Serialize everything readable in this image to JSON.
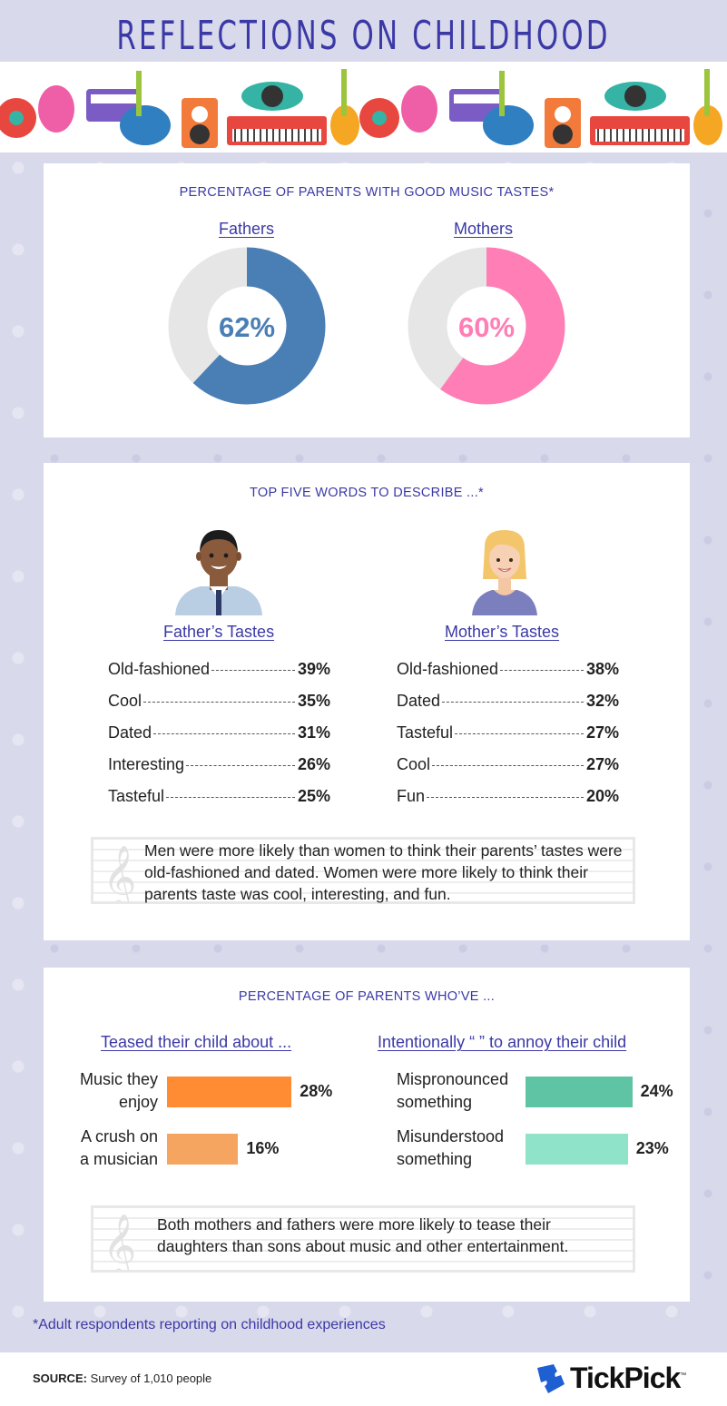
{
  "title": "REFLECTIONS ON CHILDHOOD",
  "colors": {
    "title": "#3b39a6",
    "fathers": "#4a7fb5",
    "mothers": "#ff7eb6",
    "donut_bg": "#e6e6e6",
    "orange": "#ff8c33",
    "light_orange": "#f5a560",
    "teal": "#5fc4a3",
    "light_teal": "#8fe3c9"
  },
  "section1": {
    "title": "PERCENTAGE OF PARENTS WITH GOOD MUSIC TASTES*",
    "fathers_label": "Fathers",
    "mothers_label": "Mothers",
    "fathers_value": "62%",
    "mothers_value": "60%"
  },
  "section2": {
    "title": "TOP FIVE WORDS TO DESCRIBE ...*",
    "father_heading": "Father’s Tastes",
    "mother_heading": "Mother’s Tastes",
    "father_rows": [
      {
        "word": "Old-fashioned",
        "pct": "39%"
      },
      {
        "word": "Cool",
        "pct": "35%"
      },
      {
        "word": "Dated",
        "pct": "31%"
      },
      {
        "word": "Interesting",
        "pct": "26%"
      },
      {
        "word": "Tasteful",
        "pct": "25%"
      }
    ],
    "mother_rows": [
      {
        "word": "Old-fashioned",
        "pct": "38%"
      },
      {
        "word": "Dated",
        "pct": "32%"
      },
      {
        "word": "Tasteful",
        "pct": "27%"
      },
      {
        "word": "Cool",
        "pct": "27%"
      },
      {
        "word": "Fun",
        "pct": "20%"
      }
    ],
    "note": "Men were more likely than women to think their parents’ tastes were old-fashioned and dated. Women were more likely to think their parents taste was cool, interesting, and fun."
  },
  "section3": {
    "title": "PERCENTAGE OF PARENTS WHO’VE ...",
    "left_heading": "Teased their child about ...",
    "right_heading": "Intentionally “      ” to annoy their child",
    "left_bars": [
      {
        "label_line1": "Music they",
        "label_line2": "enjoy",
        "pct": "28%"
      },
      {
        "label_line1": "A crush on",
        "label_line2": "a musician",
        "pct": "16%"
      }
    ],
    "right_bars": [
      {
        "label_line1": "Mispronounced",
        "label_line2": "something",
        "pct": "24%"
      },
      {
        "label_line1": "Misunderstood",
        "label_line2": "something",
        "pct": "23%"
      }
    ],
    "note": "Both mothers and fathers were more likely to tease their daughters than sons about music and other entertainment."
  },
  "chart_data": [
    {
      "type": "pie",
      "title": "PERCENTAGE OF PARENTS WITH GOOD MUSIC TASTES*",
      "categories": [
        "Fathers"
      ],
      "values": [
        62
      ]
    },
    {
      "type": "pie",
      "title": "",
      "categories": [
        "Mothers"
      ],
      "values": [
        60
      ]
    },
    {
      "type": "table",
      "title": "TOP FIVE WORDS TO DESCRIBE ...*",
      "subtitle": "Father’s Tastes",
      "categories": [
        "Old-fashioned",
        "Cool",
        "Dated",
        "Interesting",
        "Tasteful"
      ],
      "values": [
        39,
        35,
        31,
        26,
        25
      ]
    },
    {
      "type": "table",
      "title": "",
      "subtitle": "Mother’s Tastes",
      "categories": [
        "Old-fashioned",
        "Dated",
        "Tasteful",
        "Cool",
        "Fun"
      ],
      "values": [
        38,
        32,
        27,
        27,
        20
      ]
    },
    {
      "type": "bar",
      "title": "PERCENTAGE OF PARENTS WHO’VE ...",
      "subtitle": "Teased their child about ...",
      "categories": [
        "Music they enjoy",
        "A crush on a musician"
      ],
      "values": [
        28,
        16
      ]
    },
    {
      "type": "bar",
      "title": "",
      "subtitle": "Intentionally “      ” to annoy their child",
      "categories": [
        "Mispronounced something",
        "Misunderstood something"
      ],
      "values": [
        24,
        23
      ]
    }
  ],
  "footnote": "*Adult respondents reporting on childhood experiences",
  "source_label": "SOURCE:",
  "source_text": "Survey of 1,010 people",
  "logo_text": "TickPick",
  "logo_tm": "™"
}
